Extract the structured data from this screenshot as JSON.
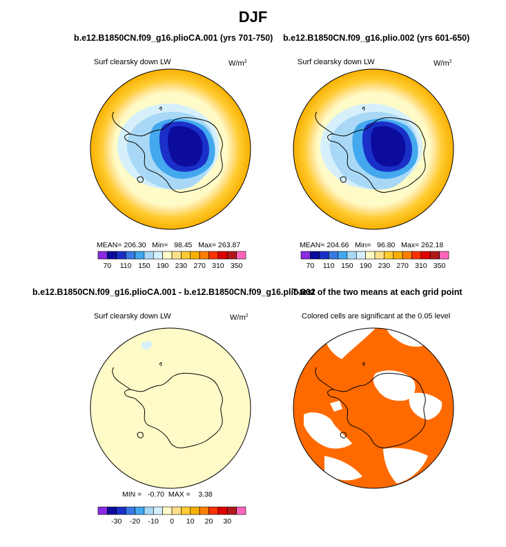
{
  "figure": {
    "title": "DJF",
    "panels": [
      {
        "case": "b.e12.B1850CN.f09_g16.plioCA.001 (yrs 701-750)",
        "variable": "Surf clearsky down LW",
        "units": "W/m",
        "units_sup": "2",
        "stats": {
          "mean_label": "MEAN=",
          "mean": "206.30",
          "min_label": "Min=",
          "min": "98.45",
          "max_label": "Max=",
          "max": "263.87"
        }
      },
      {
        "case": "b.e12.B1850CN.f09_g16.plio.002 (yrs 601-650)",
        "variable": "Surf clearsky down LW",
        "units": "W/m",
        "units_sup": "2",
        "stats": {
          "mean_label": "MEAN=",
          "mean": "204.66",
          "min_label": "Min=",
          "min": "96.80",
          "max_label": "Max=",
          "max": "262.18"
        }
      },
      {
        "case": "b.e12.B1850CN.f09_g16.plioCA.001 - b.e12.B1850CN.f09_g16.plio.002",
        "variable": "Surf clearsky down LW",
        "units": "W/m",
        "units_sup": "2",
        "stats": {
          "min_label": "MIN =",
          "min": "-0.70",
          "max_label": "MAX =",
          "max": "3.38"
        }
      },
      {
        "case": "T-test of the two means at each grid point",
        "note": "Colored cells are significant at the 0.05 level"
      }
    ]
  },
  "chart_data": [
    {
      "type": "heatmap",
      "title": "b.e12.B1850CN.f09_g16.plioCA.001 (yrs 701-750)",
      "projection": "south polar stereographic",
      "variable": "Surf clearsky down LW",
      "units": "W/m2",
      "colorbar": {
        "colors": [
          "#8a2be2",
          "#0b0b9c",
          "#1a2fc8",
          "#3a78e2",
          "#43a8ee",
          "#a9d8f6",
          "#d5f0fb",
          "#fffbc8",
          "#ffe08a",
          "#ffcc33",
          "#f8b000",
          "#ff8000",
          "#ff3300",
          "#dd0000",
          "#b01818",
          "#ff66bb"
        ],
        "ticks": [
          "70",
          "110",
          "150",
          "190",
          "230",
          "270",
          "310",
          "350"
        ]
      },
      "mean": 206.3,
      "min": 98.45,
      "max": 263.87
    },
    {
      "type": "heatmap",
      "title": "b.e12.B1850CN.f09_g16.plio.002 (yrs 601-650)",
      "projection": "south polar stereographic",
      "variable": "Surf clearsky down LW",
      "units": "W/m2",
      "colorbar": {
        "colors": [
          "#8a2be2",
          "#0b0b9c",
          "#1a2fc8",
          "#3a78e2",
          "#43a8ee",
          "#a9d8f6",
          "#d5f0fb",
          "#fffbc8",
          "#ffe08a",
          "#ffcc33",
          "#f8b000",
          "#ff8000",
          "#ff3300",
          "#dd0000",
          "#b01818",
          "#ff66bb"
        ],
        "ticks": [
          "70",
          "110",
          "150",
          "190",
          "230",
          "270",
          "310",
          "350"
        ]
      },
      "mean": 204.66,
      "min": 96.8,
      "max": 262.18
    },
    {
      "type": "heatmap",
      "title": "b.e12.B1850CN.f09_g16.plioCA.001 - b.e12.B1850CN.f09_g16.plio.002",
      "projection": "south polar stereographic",
      "variable": "Surf clearsky down LW",
      "units": "W/m2",
      "colorbar": {
        "colors": [
          "#8a2be2",
          "#0b0b9c",
          "#1a2fc8",
          "#3a78e2",
          "#43a8ee",
          "#a9d8f6",
          "#d5f0fb",
          "#fffbc8",
          "#ffe08a",
          "#ffcc33",
          "#f8b000",
          "#ff8000",
          "#ff3300",
          "#dd0000",
          "#b01818",
          "#ff66bb"
        ],
        "ticks": [
          "-30",
          "-20",
          "-10",
          "0",
          "10",
          "20",
          "30"
        ]
      },
      "min": -0.7,
      "max": 3.38
    },
    {
      "type": "heatmap",
      "title": "T-test of the two means at each grid point",
      "projection": "south polar stereographic",
      "significance_level": 0.05,
      "significant_color": "#ff6a00"
    }
  ]
}
